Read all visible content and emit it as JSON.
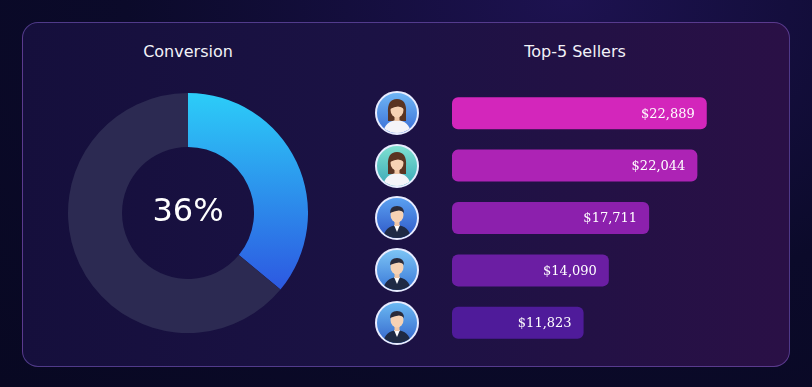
{
  "chart_data": [
    {
      "type": "doughnut",
      "title": "Conversion",
      "categories": [
        null,
        null
      ],
      "values": [
        36,
        64
      ],
      "value_labels": [
        "36%",
        null
      ],
      "colors": [
        "#2ccdf8",
        "#2c2a52"
      ]
    },
    {
      "type": "bar",
      "title": "Top-5 Sellers",
      "orientation": "horizontal",
      "categories": [
        null,
        null,
        null,
        null,
        null
      ],
      "values": [
        22889,
        22044,
        17711,
        14090,
        11823
      ],
      "value_labels": [
        "$22,889",
        "$22,044",
        "$17,711",
        "$14,090",
        "$11,823"
      ],
      "data_labels": true,
      "tick_labels": false,
      "grid": false,
      "xlim": [
        0,
        23000
      ],
      "colors": [
        "#d326bb",
        "#ad23b5",
        "#8c20ad",
        "#6b1ea3",
        "#4f1b9a"
      ]
    }
  ]
}
